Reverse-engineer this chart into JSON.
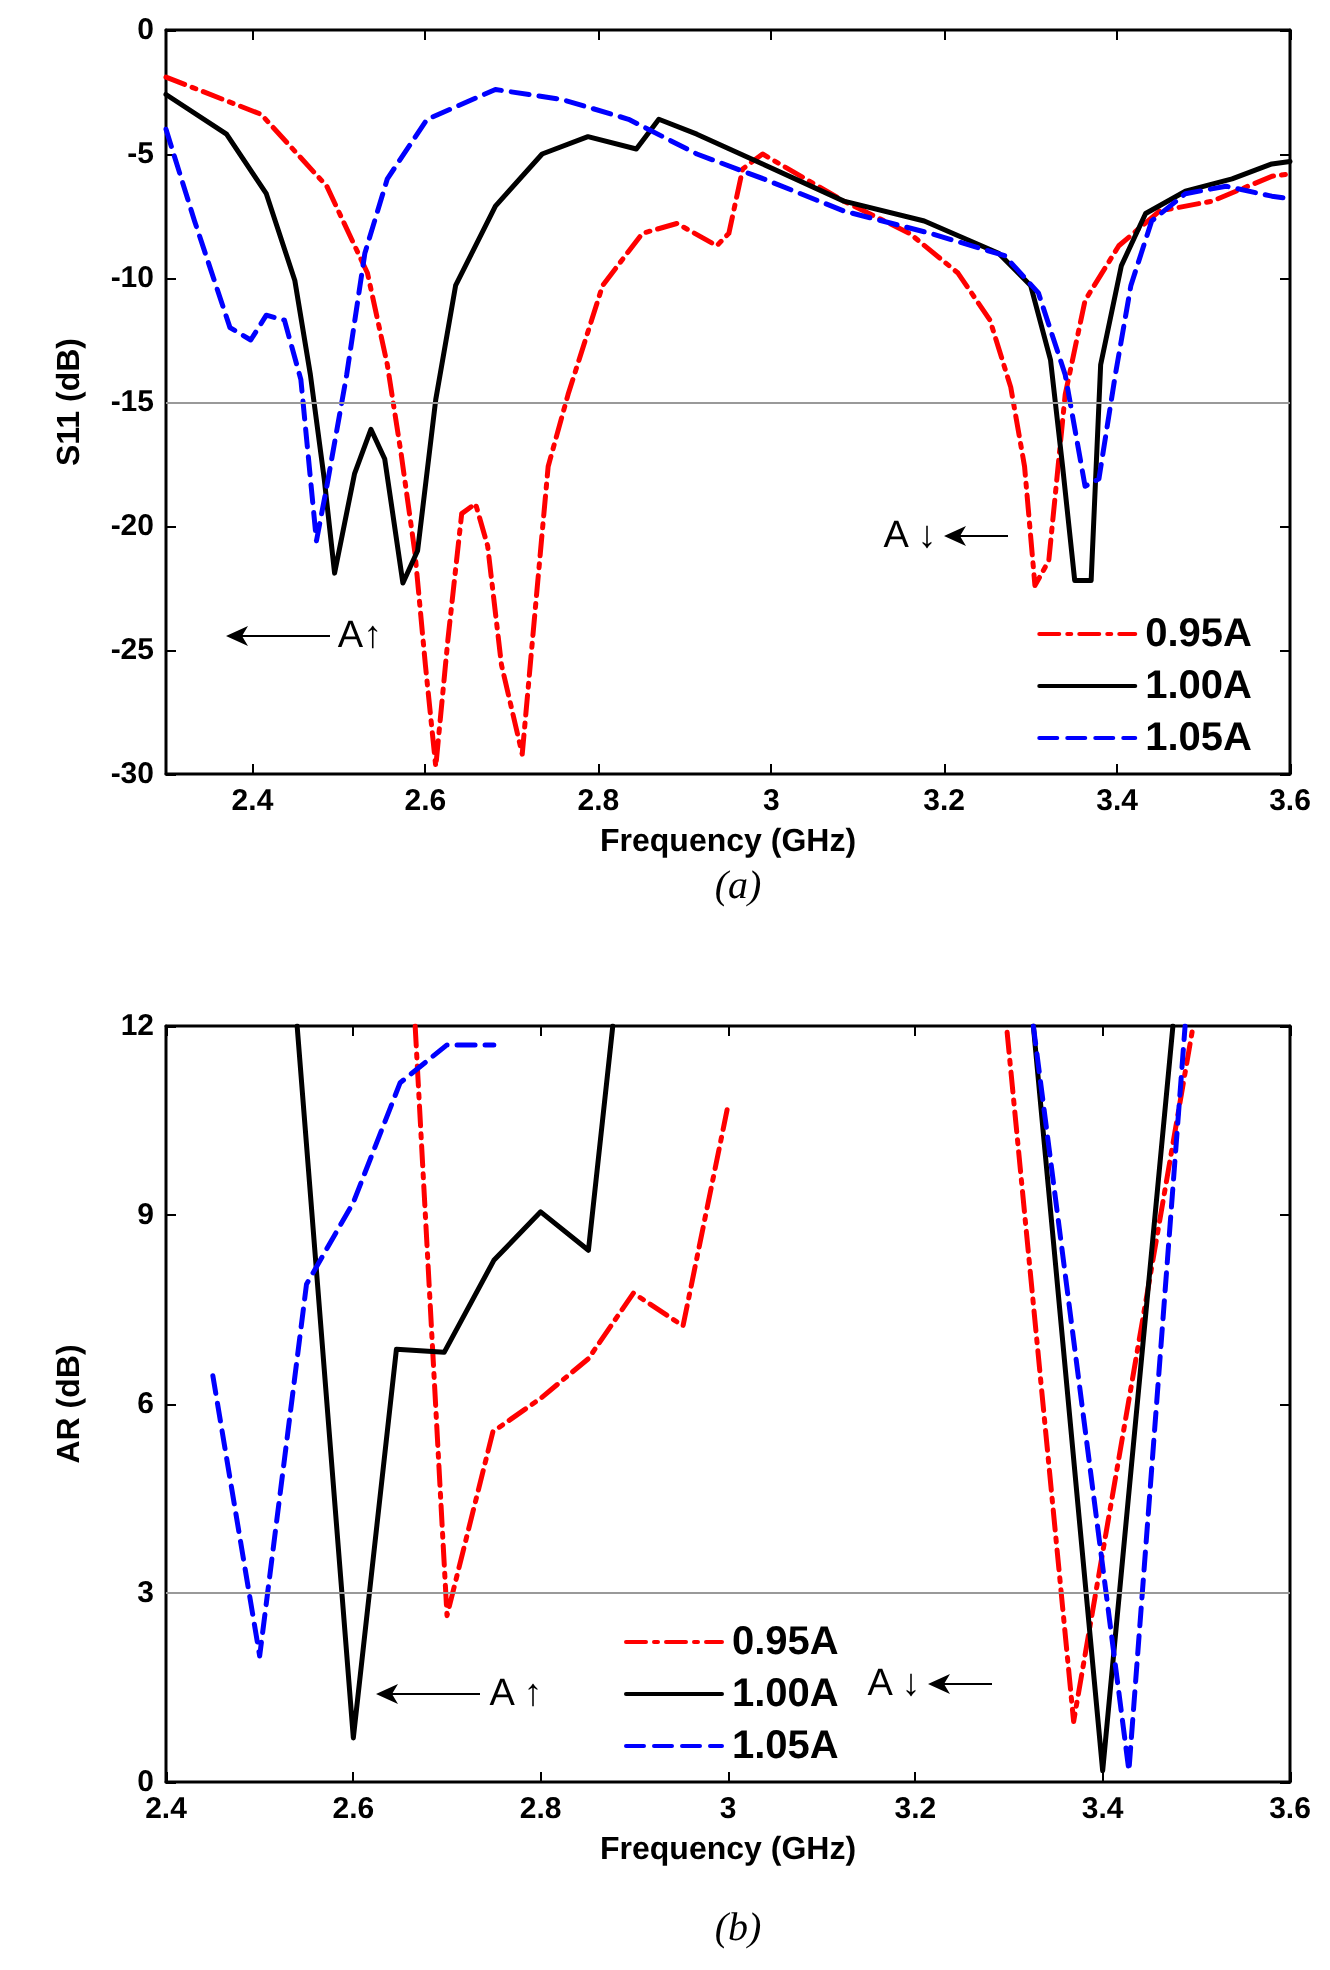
{
  "chart_data": [
    {
      "type": "line",
      "title": "(a)",
      "xlabel": "Frequency (GHz)",
      "ylabel": "S11 (dB)",
      "xlim": [
        2.3,
        3.6
      ],
      "xticks": [
        2.4,
        2.6,
        2.8,
        3,
        3.2,
        3.4,
        3.6
      ],
      "ylim": [
        -30,
        0
      ],
      "yticks": [
        -30,
        -25,
        -20,
        -15,
        -10,
        -5,
        0
      ],
      "grid": false,
      "legend": "bottom right",
      "marker": "none",
      "ref_lines": [
        {
          "axis": "y",
          "value": -15,
          "color": "#999999"
        }
      ],
      "annotations": [
        "A↑",
        "A ↓"
      ],
      "series": [
        {
          "name": "0.95A",
          "color": "#ff0000",
          "line_style": "dashdot",
          "x": [
            2.3,
            2.41,
            2.486,
            2.533,
            2.556,
            2.572,
            2.588,
            2.6,
            2.612,
            2.626,
            2.642,
            2.658,
            2.672,
            2.688,
            2.712,
            2.728,
            2.742,
            2.765,
            2.805,
            2.851,
            2.891,
            2.937,
            2.951,
            2.967,
            2.99,
            3.084,
            3.16,
            3.216,
            3.253,
            3.277,
            3.293,
            3.305,
            3.321,
            3.34,
            3.363,
            3.402,
            3.449,
            3.51,
            3.579,
            3.6
          ],
          "values": [
            -1.9,
            -3.4,
            -6.3,
            -9.8,
            -13.5,
            -17.1,
            -21.1,
            -25.6,
            -29.7,
            -24.6,
            -19.5,
            -19.1,
            -20.8,
            -25.6,
            -29.2,
            -23,
            -17.6,
            -14.7,
            -10.3,
            -8.2,
            -7.8,
            -8.7,
            -8.2,
            -5.6,
            -5.0,
            -6.9,
            -8.2,
            -9.8,
            -11.7,
            -14.4,
            -17.6,
            -22.4,
            -21.4,
            -14.7,
            -10.9,
            -8.7,
            -7.3,
            -6.9,
            -5.9,
            -5.8
          ]
        },
        {
          "name": "1.00A",
          "color": "#000000",
          "line_style": "solid",
          "x": [
            2.3,
            2.37,
            2.416,
            2.449,
            2.467,
            2.483,
            2.495,
            2.518,
            2.537,
            2.553,
            2.574,
            2.591,
            2.612,
            2.635,
            2.681,
            2.735,
            2.788,
            2.844,
            2.87,
            2.914,
            2.99,
            3.084,
            3.177,
            3.263,
            3.3,
            3.323,
            3.337,
            3.351,
            3.37,
            3.381,
            3.405,
            3.433,
            3.479,
            3.533,
            3.579,
            3.6
          ],
          "values": [
            -2.6,
            -4.2,
            -6.6,
            -10.1,
            -13.9,
            -18.1,
            -21.9,
            -17.9,
            -16.1,
            -17.3,
            -22.3,
            -21,
            -14.9,
            -10.3,
            -7.1,
            -5,
            -4.3,
            -4.8,
            -3.6,
            -4.2,
            -5.4,
            -6.9,
            -7.7,
            -9,
            -10.3,
            -13.3,
            -17.6,
            -22.2,
            -22.2,
            -13.5,
            -9.5,
            -7.4,
            -6.5,
            -6,
            -5.4,
            -5.3
          ]
        },
        {
          "name": "1.05A",
          "color": "#0000ff",
          "line_style": "dashed",
          "x": [
            2.3,
            2.333,
            2.374,
            2.398,
            2.416,
            2.437,
            2.456,
            2.474,
            2.486,
            2.509,
            2.53,
            2.556,
            2.602,
            2.681,
            2.758,
            2.835,
            2.914,
            2.991,
            3.084,
            3.184,
            3.27,
            3.309,
            3.34,
            3.363,
            3.379,
            3.398,
            3.416,
            3.44,
            3.479,
            3.526,
            3.579,
            3.6
          ],
          "values": [
            -4,
            -7.7,
            -12,
            -12.5,
            -11.5,
            -11.7,
            -14.1,
            -20.6,
            -18.4,
            -13.9,
            -9,
            -6,
            -3.6,
            -2.4,
            -2.8,
            -3.6,
            -5,
            -6,
            -7.3,
            -8.2,
            -9.1,
            -10.6,
            -13.9,
            -18.4,
            -18.1,
            -13.9,
            -10.3,
            -7.7,
            -6.6,
            -6.3,
            -6.7,
            -6.8
          ]
        }
      ]
    },
    {
      "type": "line",
      "title": "(b)",
      "xlabel": "Frequency (GHz)",
      "ylabel": "AR (dB)",
      "xlim": [
        2.4,
        3.6
      ],
      "xticks": [
        2.4,
        2.6,
        2.8,
        3,
        3.2,
        3.4,
        3.6
      ],
      "ylim": [
        0,
        12
      ],
      "yticks": [
        0,
        3,
        6,
        9,
        12
      ],
      "grid": false,
      "legend": "bottom",
      "marker": "none",
      "ref_lines": [
        {
          "axis": "y",
          "value": 3,
          "color": "#999999"
        }
      ],
      "annotations": [
        "A ↑",
        "A ↓"
      ],
      "series": [
        {
          "name": "0.95A",
          "color": "#ff0000",
          "line_style": "dashdot",
          "x": [
            2.666,
            2.7,
            2.749,
            2.8,
            2.851,
            2.899,
            2.952,
            3.0,
            null,
            3.298,
            3.369,
            3.496
          ],
          "values": [
            12,
            2.64,
            5.56,
            6.09,
            6.72,
            7.76,
            7.24,
            10.74,
            null,
            11.9,
            0.96,
            11.95
          ]
        },
        {
          "name": "1.00A",
          "color": "#000000",
          "line_style": "solid",
          "x": [
            2.54,
            2.6,
            2.646,
            2.697,
            2.75,
            2.8,
            2.851,
            2.877,
            null,
            3.326,
            3.4,
            3.475
          ],
          "values": [
            12,
            0.7,
            6.87,
            6.82,
            8.28,
            9.05,
            8.44,
            12,
            null,
            12,
            0.18,
            12
          ]
        },
        {
          "name": "1.05A",
          "color": "#0000ff",
          "line_style": "dashed",
          "x": [
            2.45,
            2.5,
            2.55,
            2.6,
            2.65,
            2.7,
            2.75,
            null,
            3.326,
            3.428,
            3.488
          ],
          "values": [
            6.45,
            2.0,
            7.9,
            9.2,
            11.1,
            11.7,
            11.7,
            null,
            12,
            0.18,
            12
          ]
        }
      ]
    }
  ]
}
